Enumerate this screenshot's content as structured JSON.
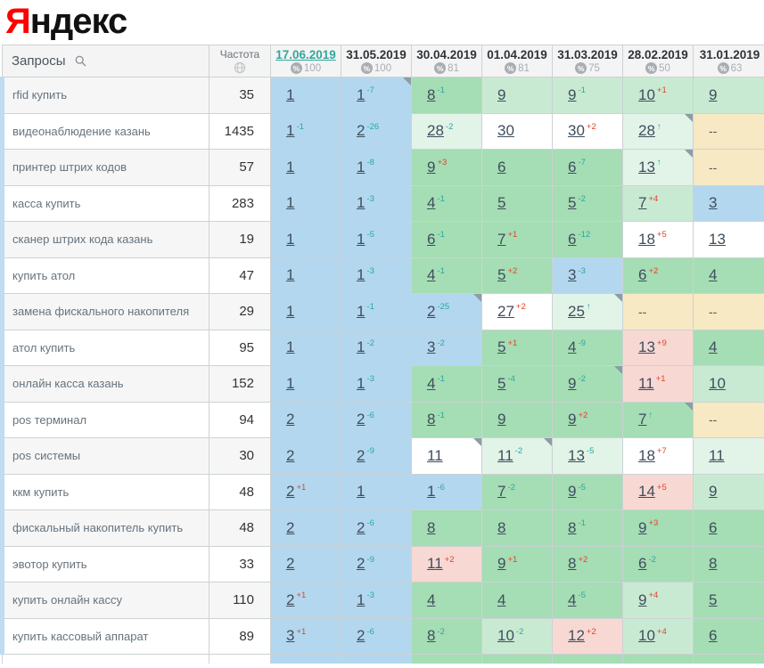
{
  "logo": {
    "prefix": "Я",
    "rest": "ндекс"
  },
  "colors": {
    "blue": "#b3d7ef",
    "green": "#a5ddb4",
    "lightgreen": "#c9ead2",
    "palest": "#e2f3e8",
    "white": "#ffffff",
    "pink": "#f8d8d3",
    "beige": "#f6e9c4",
    "delta_up": "#2ca89e",
    "delta_down": "#e0452c",
    "pos_link": "#3e4e5c",
    "current_date_link": "#2fa89d"
  },
  "icons": {
    "queries": "search-icon",
    "frequency": "globe-icon",
    "date_visibility": "percent-icon"
  },
  "header": {
    "queries_label": "Запросы",
    "frequency_label": "Частота",
    "percent_symbol": "%",
    "dates": [
      {
        "label": "17.06.2019",
        "percent": "100",
        "current": true
      },
      {
        "label": "31.05.2019",
        "percent": "100",
        "current": false
      },
      {
        "label": "30.04.2019",
        "percent": "81",
        "current": false
      },
      {
        "label": "01.04.2019",
        "percent": "81",
        "current": false
      },
      {
        "label": "31.03.2019",
        "percent": "75",
        "current": false
      },
      {
        "label": "28.02.2019",
        "percent": "50",
        "current": false
      },
      {
        "label": "31.01.2019",
        "percent": "63",
        "current": false
      }
    ]
  },
  "rows": [
    {
      "query": "rfid купить",
      "freq": "35",
      "cells": [
        {
          "pos": "1",
          "bg": "blue"
        },
        {
          "pos": "1",
          "delta": "-7",
          "dir": "up",
          "bg": "blue",
          "corner": true
        },
        {
          "pos": "8",
          "delta": "-1",
          "dir": "up",
          "bg": "green"
        },
        {
          "pos": "9",
          "bg": "lightgreen"
        },
        {
          "pos": "9",
          "delta": "-1",
          "dir": "up",
          "bg": "lightgreen"
        },
        {
          "pos": "10",
          "delta": "+1",
          "dir": "down",
          "bg": "lightgreen"
        },
        {
          "pos": "9",
          "bg": "lightgreen"
        }
      ]
    },
    {
      "query": "видеонаблюдение казань",
      "freq": "1435",
      "cells": [
        {
          "pos": "1",
          "delta": "-1",
          "dir": "up",
          "bg": "blue"
        },
        {
          "pos": "2",
          "delta": "-26",
          "dir": "up",
          "bg": "blue"
        },
        {
          "pos": "28",
          "delta": "-2",
          "dir": "up",
          "bg": "palest"
        },
        {
          "pos": "30",
          "bg": "white"
        },
        {
          "pos": "30",
          "delta": "+2",
          "dir": "down",
          "bg": "white"
        },
        {
          "pos": "28",
          "delta": "↑",
          "dir": "up",
          "bg": "palest",
          "corner": true
        },
        {
          "pos": "--",
          "bg": "beige",
          "dash": true
        }
      ]
    },
    {
      "query": "принтер штрих кодов",
      "freq": "57",
      "cells": [
        {
          "pos": "1",
          "bg": "blue"
        },
        {
          "pos": "1",
          "delta": "-8",
          "dir": "up",
          "bg": "blue"
        },
        {
          "pos": "9",
          "delta": "+3",
          "dir": "down",
          "bg": "green"
        },
        {
          "pos": "6",
          "bg": "green"
        },
        {
          "pos": "6",
          "delta": "-7",
          "dir": "up",
          "bg": "green"
        },
        {
          "pos": "13",
          "delta": "↑",
          "dir": "up",
          "bg": "palest",
          "corner": true
        },
        {
          "pos": "--",
          "bg": "beige",
          "dash": true
        }
      ]
    },
    {
      "query": "касса купить",
      "freq": "283",
      "cells": [
        {
          "pos": "1",
          "bg": "blue"
        },
        {
          "pos": "1",
          "delta": "-3",
          "dir": "up",
          "bg": "blue"
        },
        {
          "pos": "4",
          "delta": "-1",
          "dir": "up",
          "bg": "green"
        },
        {
          "pos": "5",
          "bg": "green"
        },
        {
          "pos": "5",
          "delta": "-2",
          "dir": "up",
          "bg": "green"
        },
        {
          "pos": "7",
          "delta": "+4",
          "dir": "down",
          "bg": "lightgreen"
        },
        {
          "pos": "3",
          "bg": "blue"
        }
      ]
    },
    {
      "query": "сканер штрих кода казань",
      "freq": "19",
      "cells": [
        {
          "pos": "1",
          "bg": "blue"
        },
        {
          "pos": "1",
          "delta": "-5",
          "dir": "up",
          "bg": "blue"
        },
        {
          "pos": "6",
          "delta": "-1",
          "dir": "up",
          "bg": "green"
        },
        {
          "pos": "7",
          "delta": "+1",
          "dir": "down",
          "bg": "green"
        },
        {
          "pos": "6",
          "delta": "-12",
          "dir": "up",
          "bg": "green"
        },
        {
          "pos": "18",
          "delta": "+5",
          "dir": "down",
          "bg": "white"
        },
        {
          "pos": "13",
          "bg": "white"
        }
      ]
    },
    {
      "query": "купить атол",
      "freq": "47",
      "cells": [
        {
          "pos": "1",
          "bg": "blue"
        },
        {
          "pos": "1",
          "delta": "-3",
          "dir": "up",
          "bg": "blue"
        },
        {
          "pos": "4",
          "delta": "-1",
          "dir": "up",
          "bg": "green"
        },
        {
          "pos": "5",
          "delta": "+2",
          "dir": "down",
          "bg": "green"
        },
        {
          "pos": "3",
          "delta": "-3",
          "dir": "up",
          "bg": "blue"
        },
        {
          "pos": "6",
          "delta": "+2",
          "dir": "down",
          "bg": "green"
        },
        {
          "pos": "4",
          "bg": "green"
        }
      ]
    },
    {
      "query": "замена фискального накопителя",
      "freq": "29",
      "cells": [
        {
          "pos": "1",
          "bg": "blue"
        },
        {
          "pos": "1",
          "delta": "-1",
          "dir": "up",
          "bg": "blue"
        },
        {
          "pos": "2",
          "delta": "-25",
          "dir": "up",
          "bg": "blue",
          "corner": true
        },
        {
          "pos": "27",
          "delta": "+2",
          "dir": "down",
          "bg": "white"
        },
        {
          "pos": "25",
          "delta": "↑",
          "dir": "up",
          "bg": "palest",
          "corner": true
        },
        {
          "pos": "--",
          "bg": "beige",
          "dash": true
        },
        {
          "pos": "--",
          "bg": "beige",
          "dash": true
        }
      ]
    },
    {
      "query": "атол купить",
      "freq": "95",
      "cells": [
        {
          "pos": "1",
          "bg": "blue"
        },
        {
          "pos": "1",
          "delta": "-2",
          "dir": "up",
          "bg": "blue"
        },
        {
          "pos": "3",
          "delta": "-2",
          "dir": "up",
          "bg": "blue"
        },
        {
          "pos": "5",
          "delta": "+1",
          "dir": "down",
          "bg": "green"
        },
        {
          "pos": "4",
          "delta": "-9",
          "dir": "up",
          "bg": "green"
        },
        {
          "pos": "13",
          "delta": "+9",
          "dir": "down",
          "bg": "pink"
        },
        {
          "pos": "4",
          "bg": "green"
        }
      ]
    },
    {
      "query": "онлайн касса казань",
      "freq": "152",
      "cells": [
        {
          "pos": "1",
          "bg": "blue"
        },
        {
          "pos": "1",
          "delta": "-3",
          "dir": "up",
          "bg": "blue"
        },
        {
          "pos": "4",
          "delta": "-1",
          "dir": "up",
          "bg": "green"
        },
        {
          "pos": "5",
          "delta": "-4",
          "dir": "up",
          "bg": "green"
        },
        {
          "pos": "9",
          "delta": "-2",
          "dir": "up",
          "bg": "green",
          "corner": true
        },
        {
          "pos": "11",
          "delta": "+1",
          "dir": "down",
          "bg": "pink"
        },
        {
          "pos": "10",
          "bg": "lightgreen"
        }
      ]
    },
    {
      "query": "pos терминал",
      "freq": "94",
      "cells": [
        {
          "pos": "2",
          "bg": "blue"
        },
        {
          "pos": "2",
          "delta": "-6",
          "dir": "up",
          "bg": "blue"
        },
        {
          "pos": "8",
          "delta": "-1",
          "dir": "up",
          "bg": "green"
        },
        {
          "pos": "9",
          "bg": "green"
        },
        {
          "pos": "9",
          "delta": "+2",
          "dir": "down",
          "bg": "green"
        },
        {
          "pos": "7",
          "delta": "↑",
          "dir": "up",
          "bg": "green",
          "corner": true
        },
        {
          "pos": "--",
          "bg": "beige",
          "dash": true
        }
      ]
    },
    {
      "query": "pos системы",
      "freq": "30",
      "cells": [
        {
          "pos": "2",
          "bg": "blue"
        },
        {
          "pos": "2",
          "delta": "-9",
          "dir": "up",
          "bg": "blue"
        },
        {
          "pos": "11",
          "bg": "white",
          "corner": true
        },
        {
          "pos": "11",
          "delta": "-2",
          "dir": "up",
          "bg": "palest",
          "corner": true
        },
        {
          "pos": "13",
          "delta": "-5",
          "dir": "up",
          "bg": "palest"
        },
        {
          "pos": "18",
          "delta": "+7",
          "dir": "down",
          "bg": "white"
        },
        {
          "pos": "11",
          "bg": "palest"
        }
      ]
    },
    {
      "query": "ккм купить",
      "freq": "48",
      "cells": [
        {
          "pos": "2",
          "delta": "+1",
          "dir": "down",
          "bg": "blue"
        },
        {
          "pos": "1",
          "bg": "blue"
        },
        {
          "pos": "1",
          "delta": "-6",
          "dir": "up",
          "bg": "blue"
        },
        {
          "pos": "7",
          "delta": "-2",
          "dir": "up",
          "bg": "green"
        },
        {
          "pos": "9",
          "delta": "-5",
          "dir": "up",
          "bg": "green"
        },
        {
          "pos": "14",
          "delta": "+5",
          "dir": "down",
          "bg": "pink"
        },
        {
          "pos": "9",
          "bg": "lightgreen"
        }
      ]
    },
    {
      "query": "фискальный накопитель купить",
      "freq": "48",
      "cells": [
        {
          "pos": "2",
          "bg": "blue"
        },
        {
          "pos": "2",
          "delta": "-6",
          "dir": "up",
          "bg": "blue"
        },
        {
          "pos": "8",
          "bg": "green"
        },
        {
          "pos": "8",
          "bg": "green"
        },
        {
          "pos": "8",
          "delta": "-1",
          "dir": "up",
          "bg": "green"
        },
        {
          "pos": "9",
          "delta": "+3",
          "dir": "down",
          "bg": "green"
        },
        {
          "pos": "6",
          "bg": "green"
        }
      ]
    },
    {
      "query": "эвотор купить",
      "freq": "33",
      "cells": [
        {
          "pos": "2",
          "bg": "blue"
        },
        {
          "pos": "2",
          "delta": "-9",
          "dir": "up",
          "bg": "blue"
        },
        {
          "pos": "11",
          "delta": "+2",
          "dir": "down",
          "bg": "pink"
        },
        {
          "pos": "9",
          "delta": "+1",
          "dir": "down",
          "bg": "green"
        },
        {
          "pos": "8",
          "delta": "+2",
          "dir": "down",
          "bg": "green"
        },
        {
          "pos": "6",
          "delta": "-2",
          "dir": "up",
          "bg": "green"
        },
        {
          "pos": "8",
          "bg": "green"
        }
      ]
    },
    {
      "query": "купить онлайн кассу",
      "freq": "110",
      "cells": [
        {
          "pos": "2",
          "delta": "+1",
          "dir": "down",
          "bg": "blue"
        },
        {
          "pos": "1",
          "delta": "-3",
          "dir": "up",
          "bg": "blue"
        },
        {
          "pos": "4",
          "bg": "green"
        },
        {
          "pos": "4",
          "bg": "green"
        },
        {
          "pos": "4",
          "delta": "-5",
          "dir": "up",
          "bg": "green"
        },
        {
          "pos": "9",
          "delta": "+4",
          "dir": "down",
          "bg": "lightgreen"
        },
        {
          "pos": "5",
          "bg": "green"
        }
      ]
    },
    {
      "query": "купить кассовый аппарат",
      "freq": "89",
      "cells": [
        {
          "pos": "3",
          "delta": "+1",
          "dir": "down",
          "bg": "blue"
        },
        {
          "pos": "2",
          "delta": "-6",
          "dir": "up",
          "bg": "blue"
        },
        {
          "pos": "8",
          "delta": "-2",
          "dir": "up",
          "bg": "green"
        },
        {
          "pos": "10",
          "delta": "-2",
          "dir": "up",
          "bg": "lightgreen"
        },
        {
          "pos": "12",
          "delta": "+2",
          "dir": "down",
          "bg": "pink"
        },
        {
          "pos": "10",
          "delta": "+4",
          "dir": "down",
          "bg": "lightgreen"
        },
        {
          "pos": "6",
          "bg": "green"
        }
      ]
    }
  ],
  "partial_row": {
    "bgs": [
      "white",
      "white",
      "blue",
      "blue",
      "green",
      "green",
      "green",
      "green",
      "green"
    ]
  }
}
